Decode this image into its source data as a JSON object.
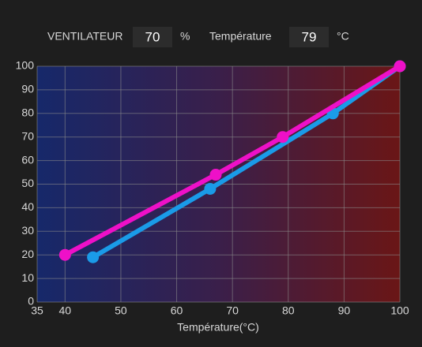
{
  "header": {
    "fan": {
      "label": "VENTILATEUR",
      "value": "70",
      "unit": "%"
    },
    "temperature": {
      "label": "Température",
      "value": "79",
      "unit": "°C"
    }
  },
  "chart_data": {
    "type": "line",
    "xlabel": "Température(°C)",
    "xlim": [
      35,
      100
    ],
    "xticks": [
      35,
      40,
      50,
      60,
      70,
      80,
      90,
      100
    ],
    "ylim": [
      0,
      100
    ],
    "yticks": [
      0,
      10,
      20,
      30,
      40,
      50,
      60,
      70,
      80,
      90,
      100
    ],
    "grid": true,
    "series": [
      {
        "color": "#1a9be8",
        "x": [
          45,
          66,
          88,
          100
        ],
        "values": [
          19,
          48,
          80,
          100
        ]
      },
      {
        "color": "#ee10c8",
        "x": [
          40,
          67,
          79,
          100
        ],
        "values": [
          20,
          54,
          70,
          100
        ]
      }
    ]
  }
}
